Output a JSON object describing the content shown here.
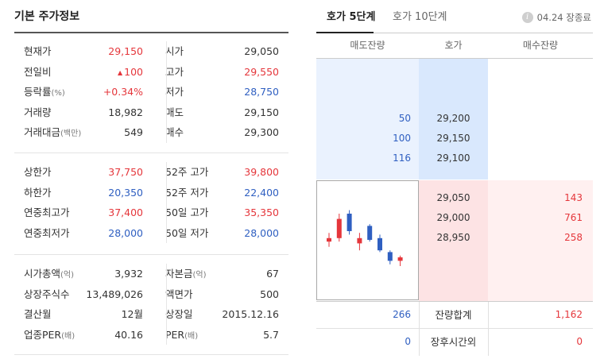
{
  "left": {
    "title": "기본 주가정보",
    "section1": [
      {
        "l": "현재가",
        "l_unit": "",
        "v1": "29,150",
        "v1_cls": "red",
        "l2": "시가",
        "l2_unit": "",
        "v2": "29,050",
        "v2_cls": ""
      },
      {
        "l": "전일비",
        "l_unit": "",
        "v1": "100",
        "v1_cls": "red",
        "v1_arrow": "▲",
        "l2": "고가",
        "l2_unit": "",
        "v2": "29,550",
        "v2_cls": "red"
      },
      {
        "l": "등락률",
        "l_unit": "(%)",
        "v1": "+0.34%",
        "v1_cls": "red",
        "l2": "저가",
        "l2_unit": "",
        "v2": "28,750",
        "v2_cls": "blue"
      },
      {
        "l": "거래량",
        "l_unit": "",
        "v1": "18,982",
        "v1_cls": "",
        "l2": "매도",
        "l2_unit": "",
        "v2": "29,150",
        "v2_cls": ""
      },
      {
        "l": "거래대금",
        "l_unit": "(백만)",
        "v1": "549",
        "v1_cls": "",
        "l2": "매수",
        "l2_unit": "",
        "v2": "29,300",
        "v2_cls": ""
      }
    ],
    "section2": [
      {
        "l": "상한가",
        "l_unit": "",
        "v1": "37,750",
        "v1_cls": "red",
        "l2": "52주 고가",
        "l2_unit": "",
        "v2": "39,800",
        "v2_cls": "red"
      },
      {
        "l": "하한가",
        "l_unit": "",
        "v1": "20,350",
        "v1_cls": "blue",
        "l2": "52주 저가",
        "l2_unit": "",
        "v2": "22,400",
        "v2_cls": "blue"
      },
      {
        "l": "연중최고가",
        "l_unit": "",
        "v1": "37,400",
        "v1_cls": "red",
        "l2": "50일 고가",
        "l2_unit": "",
        "v2": "35,350",
        "v2_cls": "red"
      },
      {
        "l": "연중최저가",
        "l_unit": "",
        "v1": "28,000",
        "v1_cls": "blue",
        "l2": "50일 저가",
        "l2_unit": "",
        "v2": "28,000",
        "v2_cls": "blue"
      }
    ],
    "section3": [
      {
        "l": "시가총액",
        "l_unit": "(억)",
        "v1": "3,932",
        "v1_cls": "",
        "l2": "자본금",
        "l2_unit": "(억)",
        "v2": "67",
        "v2_cls": ""
      },
      {
        "l": "상장주식수",
        "l_unit": "",
        "v1": "13,489,026",
        "v1_cls": "",
        "l2": "액면가",
        "l2_unit": "",
        "v2": "500",
        "v2_cls": ""
      },
      {
        "l": "결산월",
        "l_unit": "",
        "v1": "12월",
        "v1_cls": "",
        "l2": "상장일",
        "l2_unit": "",
        "v2": "2015.12.16",
        "v2_cls": ""
      },
      {
        "l": "업종PER",
        "l_unit": "(배)",
        "v1": "40.16",
        "v1_cls": "",
        "l2": "PER",
        "l2_unit": "(배)",
        "v2": "5.7",
        "v2_cls": ""
      }
    ]
  },
  "right": {
    "tabs": [
      "호가 5단계",
      "호가 10단계"
    ],
    "active_tab": 0,
    "status_date": "04.24",
    "status_text": "장종료",
    "info_icon": "info-icon",
    "headers": [
      "매도잔량",
      "호가",
      "매수잔량"
    ],
    "asks": [
      {
        "qty": "50",
        "price": "29,200"
      },
      {
        "qty": "100",
        "price": "29,150"
      },
      {
        "qty": "116",
        "price": "29,100"
      }
    ],
    "bids": [
      {
        "price": "29,050",
        "qty": "143"
      },
      {
        "price": "29,000",
        "qty": "761"
      },
      {
        "price": "28,950",
        "qty": "258"
      }
    ],
    "totals": {
      "ask": "266",
      "label": "잔량합계",
      "bid": "1,162"
    },
    "after_hours": {
      "ask": "0",
      "label": "장후시간외",
      "bid": "0"
    },
    "colors": {
      "red": "#e5363b",
      "blue": "#2f5fc1",
      "ask_bg": "#eaf2fe",
      "bid_bg": "#fff0f0"
    }
  },
  "chart_data": {
    "type": "candlestick",
    "candles": [
      {
        "open": 28990,
        "close": 29010,
        "high": 29040,
        "low": 28960,
        "color": "red"
      },
      {
        "open": 29010,
        "close": 29120,
        "high": 29150,
        "low": 28990,
        "color": "red"
      },
      {
        "open": 29150,
        "close": 29050,
        "high": 29170,
        "low": 29030,
        "color": "blue"
      },
      {
        "open": 28980,
        "close": 29010,
        "high": 29040,
        "low": 28940,
        "color": "red"
      },
      {
        "open": 29080,
        "close": 29000,
        "high": 29090,
        "low": 28990,
        "color": "blue"
      },
      {
        "open": 29010,
        "close": 28940,
        "high": 29030,
        "low": 28930,
        "color": "blue"
      },
      {
        "open": 28930,
        "close": 28880,
        "high": 28940,
        "low": 28860,
        "color": "blue"
      },
      {
        "open": 28880,
        "close": 28900,
        "high": 28910,
        "low": 28850,
        "color": "red"
      }
    ],
    "ylim": [
      28800,
      29200
    ]
  }
}
